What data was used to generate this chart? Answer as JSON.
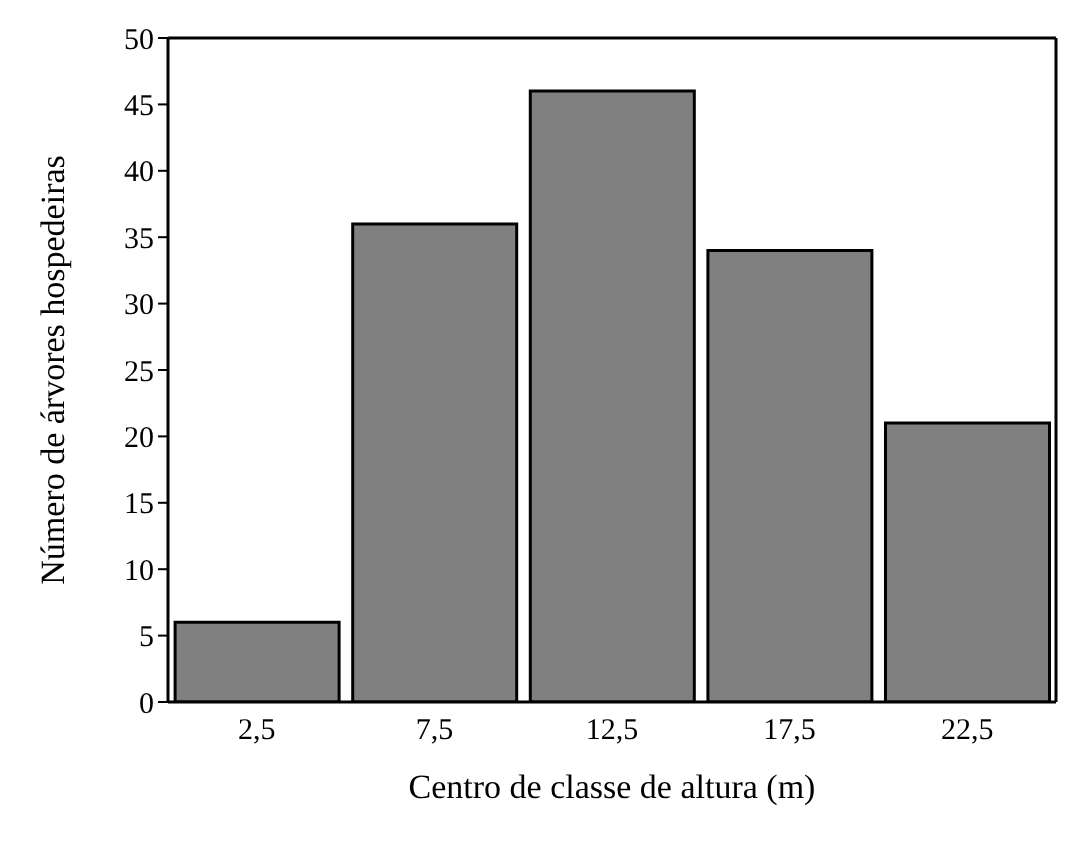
{
  "chart_data": {
    "type": "bar",
    "xlabel": "Centro de classe de altura (m)",
    "ylabel": "Número de árvores hospedeiras",
    "categories": [
      "2,5",
      "7,5",
      "12,5",
      "17,5",
      "22,5"
    ],
    "values": [
      6,
      36,
      46,
      34,
      21
    ],
    "color": "#808080",
    "ylim": [
      0,
      50
    ],
    "yticks": [
      0,
      5,
      10,
      15,
      20,
      25,
      30,
      35,
      40,
      45,
      50
    ],
    "grid": false
  }
}
